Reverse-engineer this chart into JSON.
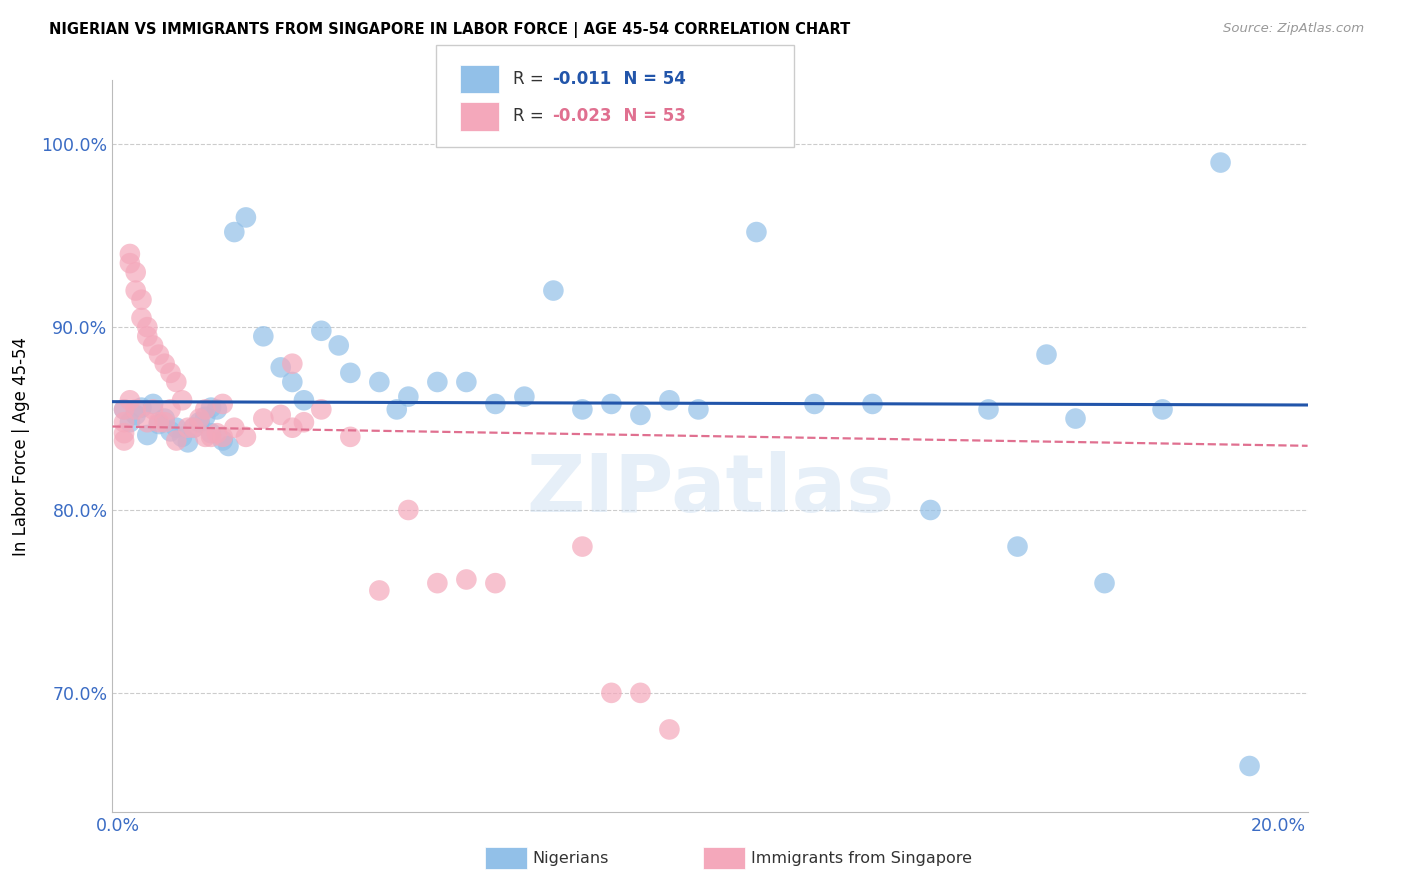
{
  "title": "NIGERIAN VS IMMIGRANTS FROM SINGAPORE IN LABOR FORCE | AGE 45-54 CORRELATION CHART",
  "source": "Source: ZipAtlas.com",
  "ylabel": "In Labor Force | Age 45-54",
  "xlim": [
    -0.001,
    0.205
  ],
  "ylim": [
    0.635,
    1.035
  ],
  "yticks": [
    0.7,
    0.8,
    0.9,
    1.0
  ],
  "ytick_labels": [
    "70.0%",
    "80.0%",
    "90.0%",
    "100.0%"
  ],
  "xticks": [
    0.0,
    0.04,
    0.08,
    0.12,
    0.16,
    0.2
  ],
  "xtick_labels": [
    "0.0%",
    "",
    "",
    "",
    "",
    "20.0%"
  ],
  "blue_R": -0.011,
  "blue_N": 54,
  "pink_R": -0.023,
  "pink_N": 53,
  "blue_color": "#92C0E8",
  "pink_color": "#F4A8BB",
  "blue_line_color": "#2255AA",
  "pink_line_color": "#E07090",
  "legend_label_blue": "Nigerians",
  "legend_label_pink": "Immigrants from Singapore",
  "blue_x": [
    0.001,
    0.002,
    0.003,
    0.004,
    0.005,
    0.006,
    0.007,
    0.008,
    0.009,
    0.01,
    0.011,
    0.012,
    0.013,
    0.014,
    0.015,
    0.016,
    0.016,
    0.017,
    0.018,
    0.019,
    0.02,
    0.022,
    0.025,
    0.028,
    0.03,
    0.032,
    0.035,
    0.038,
    0.04,
    0.045,
    0.048,
    0.05,
    0.055,
    0.06,
    0.065,
    0.07,
    0.075,
    0.08,
    0.085,
    0.09,
    0.095,
    0.1,
    0.11,
    0.12,
    0.13,
    0.14,
    0.15,
    0.155,
    0.16,
    0.165,
    0.17,
    0.18,
    0.19,
    0.195
  ],
  "blue_y": [
    0.855,
    0.848,
    0.852,
    0.856,
    0.841,
    0.858,
    0.847,
    0.85,
    0.843,
    0.845,
    0.84,
    0.837,
    0.845,
    0.848,
    0.851,
    0.842,
    0.856,
    0.855,
    0.838,
    0.835,
    0.952,
    0.96,
    0.895,
    0.878,
    0.87,
    0.86,
    0.898,
    0.89,
    0.875,
    0.87,
    0.855,
    0.862,
    0.87,
    0.87,
    0.858,
    0.862,
    0.92,
    0.855,
    0.858,
    0.852,
    0.86,
    0.855,
    0.952,
    0.858,
    0.858,
    0.8,
    0.855,
    0.78,
    0.885,
    0.85,
    0.76,
    0.855,
    0.99,
    0.66
  ],
  "pink_x": [
    0.001,
    0.001,
    0.001,
    0.001,
    0.002,
    0.002,
    0.002,
    0.003,
    0.003,
    0.003,
    0.004,
    0.004,
    0.005,
    0.005,
    0.005,
    0.006,
    0.006,
    0.007,
    0.007,
    0.008,
    0.008,
    0.009,
    0.009,
    0.01,
    0.01,
    0.011,
    0.012,
    0.013,
    0.014,
    0.015,
    0.015,
    0.016,
    0.017,
    0.018,
    0.018,
    0.02,
    0.022,
    0.025,
    0.028,
    0.03,
    0.03,
    0.032,
    0.035,
    0.04,
    0.045,
    0.05,
    0.055,
    0.06,
    0.065,
    0.08,
    0.085,
    0.09,
    0.095
  ],
  "pink_y": [
    0.855,
    0.848,
    0.842,
    0.838,
    0.94,
    0.935,
    0.86,
    0.93,
    0.92,
    0.855,
    0.915,
    0.905,
    0.9,
    0.895,
    0.848,
    0.89,
    0.855,
    0.885,
    0.848,
    0.88,
    0.848,
    0.875,
    0.855,
    0.87,
    0.838,
    0.86,
    0.845,
    0.845,
    0.85,
    0.84,
    0.855,
    0.84,
    0.842,
    0.84,
    0.858,
    0.845,
    0.84,
    0.85,
    0.852,
    0.845,
    0.88,
    0.848,
    0.855,
    0.84,
    0.756,
    0.8,
    0.76,
    0.762,
    0.76,
    0.78,
    0.7,
    0.7,
    0.68
  ]
}
